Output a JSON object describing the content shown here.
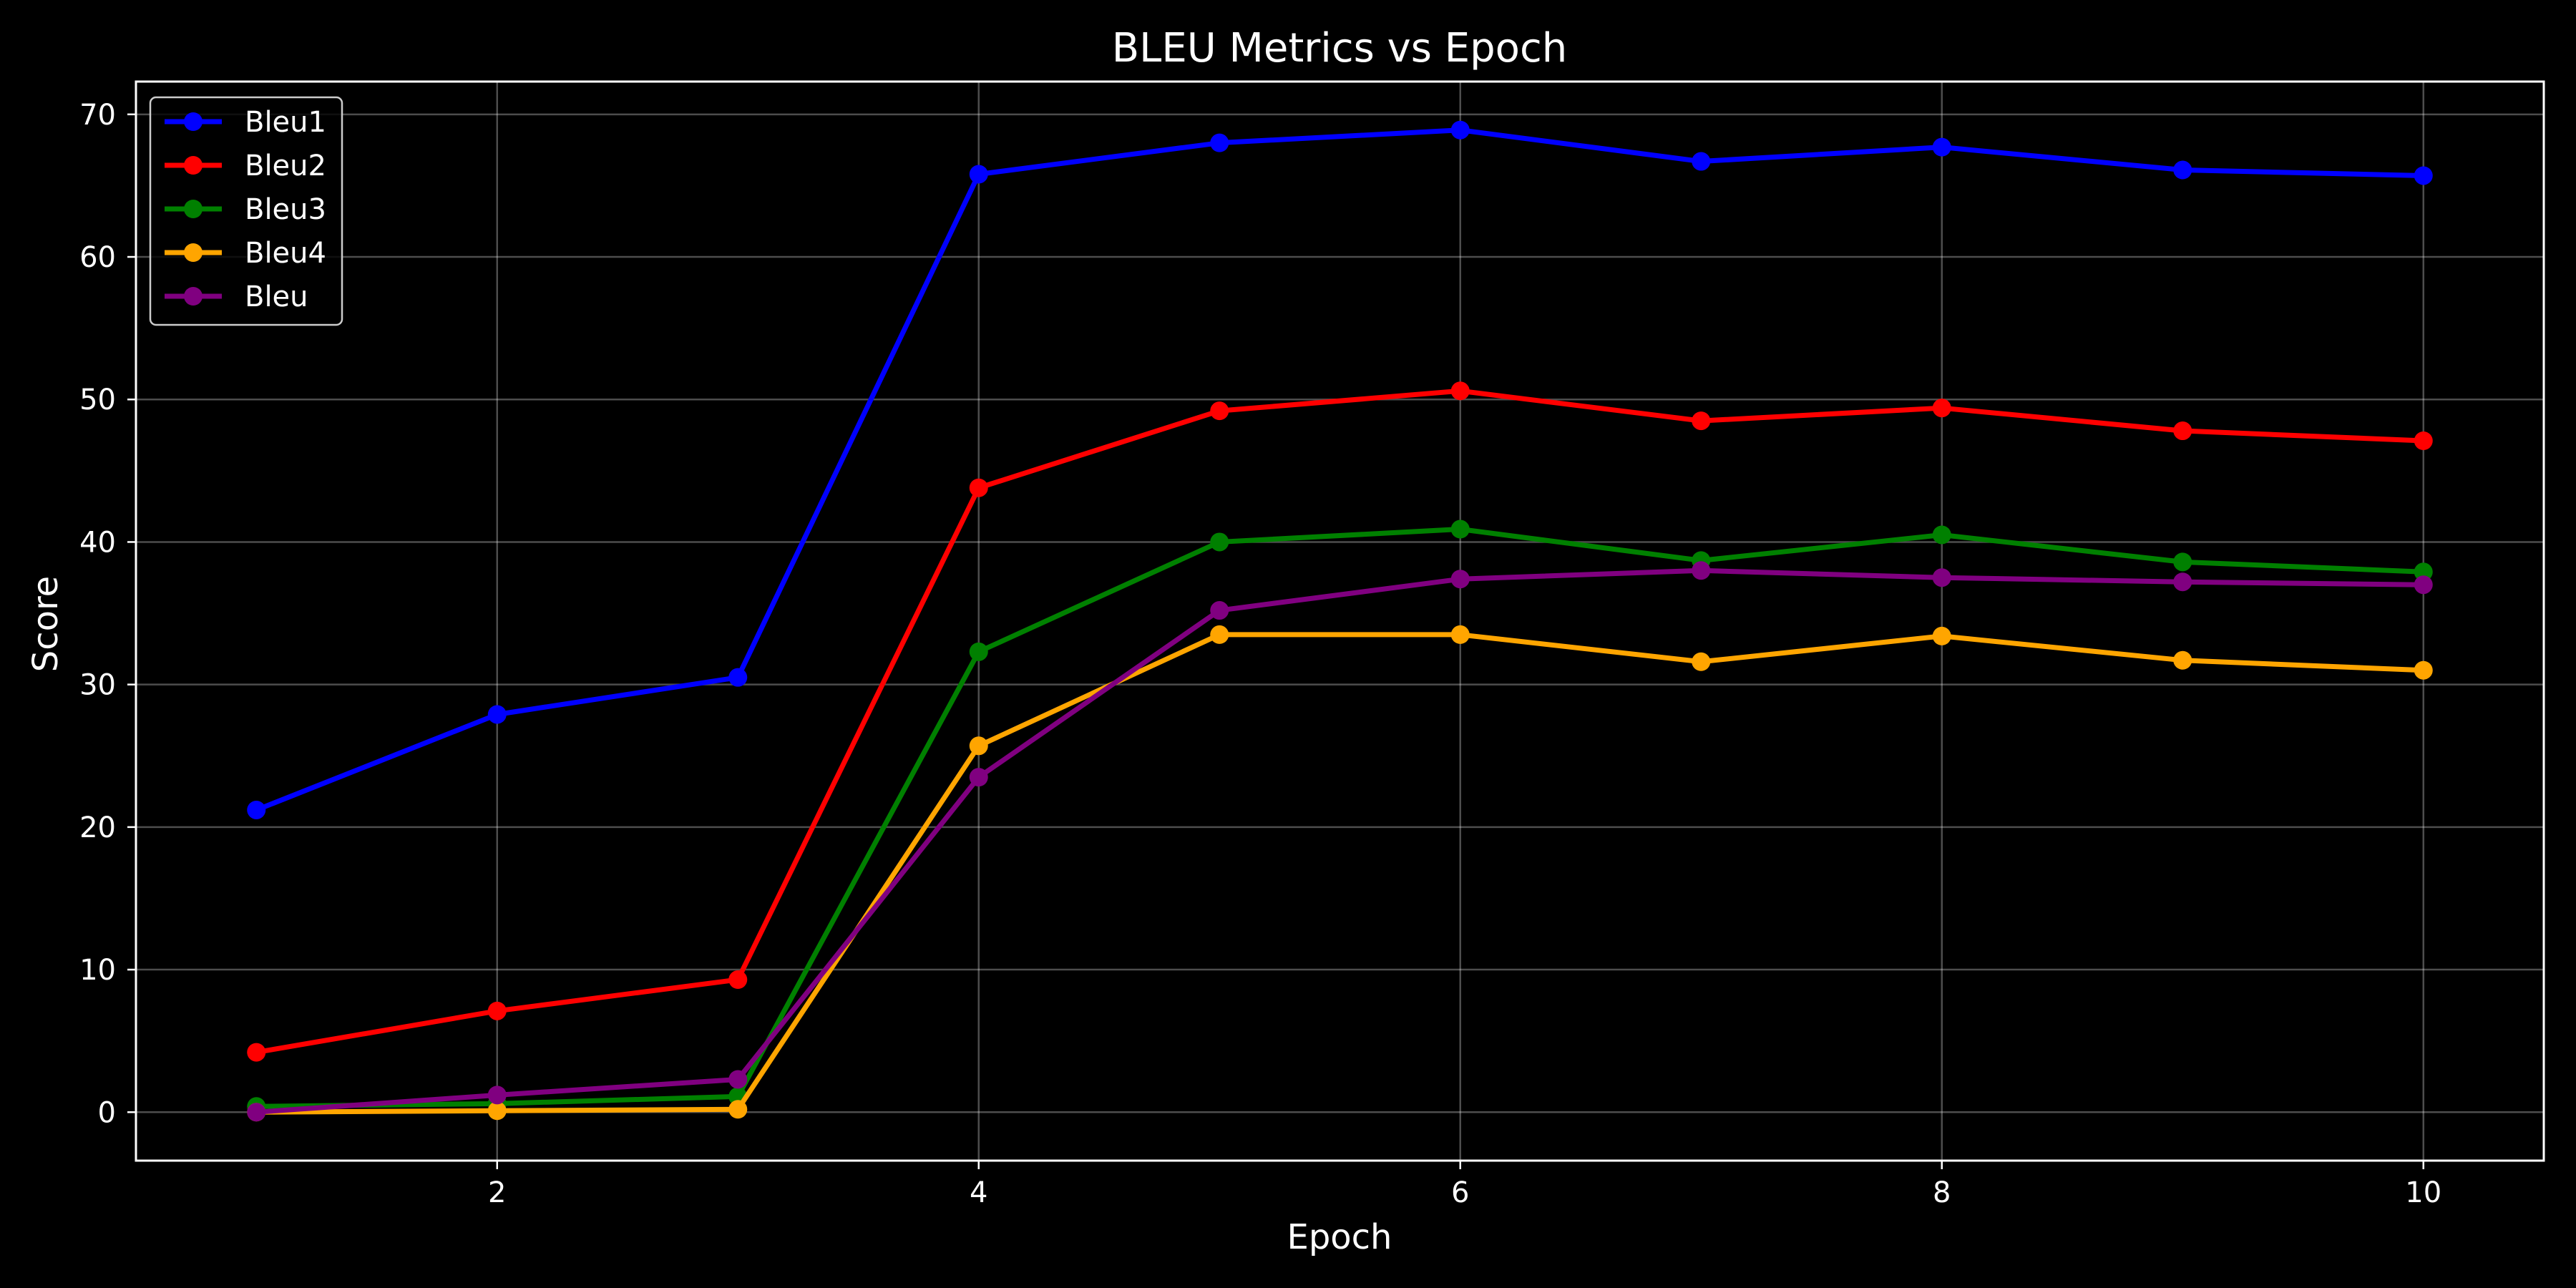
{
  "chart_data": {
    "type": "line",
    "title": "BLEU Metrics vs Epoch",
    "xlabel": "Epoch",
    "ylabel": "Score",
    "x": [
      1,
      2,
      3,
      4,
      5,
      6,
      7,
      8,
      9,
      10
    ],
    "xlim": [
      0.5,
      10.5
    ],
    "ylim": [
      -3.4,
      72.3
    ],
    "xticks": [
      2,
      4,
      6,
      8,
      10
    ],
    "yticks": [
      0,
      10,
      20,
      30,
      40,
      50,
      60,
      70
    ],
    "grid": true,
    "legend_position": "top-left",
    "series": [
      {
        "name": "Bleu1",
        "color": "#0000ff",
        "values": [
          21.2,
          27.9,
          30.5,
          65.8,
          68.0,
          68.9,
          66.7,
          67.7,
          66.1,
          65.7
        ]
      },
      {
        "name": "Bleu2",
        "color": "#ff0000",
        "values": [
          4.2,
          7.1,
          9.3,
          43.8,
          49.2,
          50.6,
          48.5,
          49.4,
          47.8,
          47.1
        ]
      },
      {
        "name": "Bleu3",
        "color": "#008000",
        "values": [
          0.4,
          0.6,
          1.1,
          32.3,
          40.0,
          40.9,
          38.7,
          40.5,
          38.6,
          37.9
        ]
      },
      {
        "name": "Bleu4",
        "color": "#ffa500",
        "values": [
          0.0,
          0.1,
          0.2,
          25.7,
          33.5,
          33.5,
          31.6,
          33.4,
          31.7,
          31.0
        ]
      },
      {
        "name": "Bleu",
        "color": "#800080",
        "values": [
          0.0,
          1.2,
          2.3,
          23.5,
          35.2,
          37.4,
          38.0,
          37.5,
          37.2,
          37.0
        ]
      }
    ]
  }
}
